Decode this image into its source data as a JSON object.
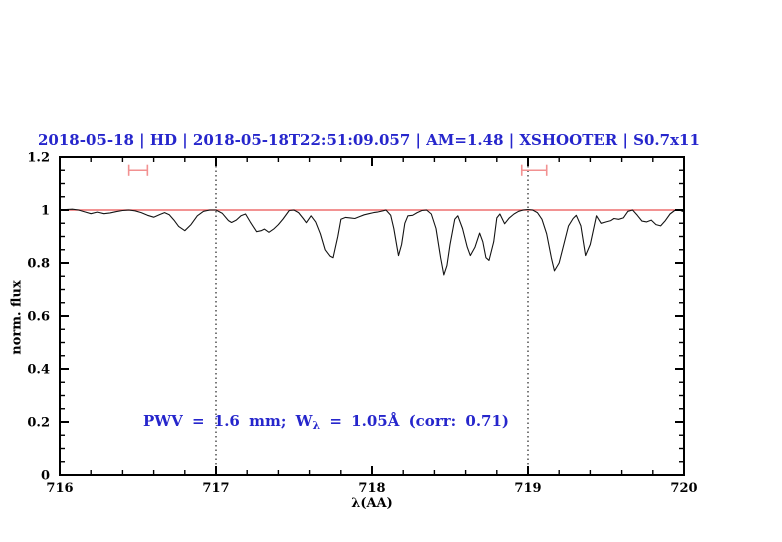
{
  "figure": {
    "title_color": "#2626cc",
    "annotation": {
      "prefix": "PWV = 1.6 mm; W",
      "sub": "λ",
      "suffix": " = 1.05Å (corr: 0.71)",
      "color": "#2626cc"
    }
  },
  "chart_data": {
    "type": "line",
    "title": "2018-05-18 | HD | 2018-05-18T22:51:09.057 | AM=1.48 | XSHOOTER | S0.7x11",
    "xlabel": "λ(AA)",
    "ylabel": "norm. flux",
    "xlim": [
      716,
      720
    ],
    "ylim": [
      0,
      1.2
    ],
    "grid": "off",
    "legend": "none",
    "xticks": {
      "values": [
        716,
        717,
        718,
        719,
        720
      ],
      "labels": [
        "716",
        "717",
        "718",
        "719",
        "720"
      ],
      "minor_step": 0.2
    },
    "yticks": {
      "values": [
        0,
        0.2,
        0.4,
        0.6,
        0.8,
        1,
        1.2
      ],
      "labels": [
        "0",
        "0.2",
        "0.4",
        "0.6",
        "0.8",
        "1",
        "1.2"
      ],
      "minor_step": 0.05
    },
    "annotation_text": "PWV = 1.6 mm; W_λ = 1.05Å (corr: 0.71)",
    "reference_line": {
      "y": 1.0,
      "color": "#ee6e6e"
    },
    "dotted_vlines": [
      717.0,
      719.0
    ],
    "marker_color": "#f29191",
    "interval_markers": [
      {
        "x1": 716.44,
        "x2": 716.56,
        "y": 1.15,
        "cap_halfheight": 0.021
      },
      {
        "x1": 718.96,
        "x2": 719.12,
        "y": 1.15,
        "cap_halfheight": 0.021
      }
    ],
    "series": [
      {
        "name": "normalized telluric spectrum",
        "color": "#141414",
        "x": [
          716.0,
          716.04,
          716.08,
          716.12,
          716.16,
          716.2,
          716.24,
          716.28,
          716.32,
          716.36,
          716.4,
          716.44,
          716.48,
          716.52,
          716.56,
          716.6,
          716.64,
          716.67,
          716.7,
          716.73,
          716.76,
          716.8,
          716.84,
          716.88,
          716.92,
          716.96,
          717.0,
          717.04,
          717.08,
          717.1,
          717.13,
          717.16,
          717.19,
          717.22,
          717.26,
          717.29,
          717.31,
          717.34,
          717.37,
          717.4,
          717.43,
          717.47,
          717.5,
          717.53,
          717.56,
          717.58,
          717.61,
          717.64,
          717.67,
          717.7,
          717.73,
          717.75,
          717.78,
          717.8,
          717.83,
          717.86,
          717.89,
          717.92,
          717.95,
          717.98,
          718.01,
          718.04,
          718.07,
          718.09,
          718.12,
          718.14,
          718.16,
          718.17,
          718.19,
          718.21,
          718.23,
          718.26,
          718.29,
          718.32,
          718.35,
          718.38,
          718.41,
          718.44,
          718.46,
          718.48,
          718.5,
          718.53,
          718.55,
          718.58,
          718.61,
          718.63,
          718.66,
          718.69,
          718.71,
          718.73,
          718.75,
          718.78,
          718.8,
          718.82,
          718.85,
          718.88,
          718.91,
          718.94,
          718.97,
          719.0,
          719.03,
          719.06,
          719.09,
          719.12,
          719.15,
          719.17,
          719.2,
          719.23,
          719.26,
          719.29,
          719.31,
          719.34,
          719.37,
          719.4,
          719.44,
          719.47,
          719.5,
          719.53,
          719.55,
          719.58,
          719.61,
          719.64,
          719.67,
          719.7,
          719.73,
          719.76,
          719.79,
          719.82,
          719.85,
          719.88,
          719.91,
          719.94,
          719.97,
          720.0
        ],
        "y": [
          1.0,
          1.002,
          1.003,
          1.0,
          0.993,
          0.986,
          0.992,
          0.986,
          0.989,
          0.994,
          0.998,
          1.0,
          0.997,
          0.99,
          0.98,
          0.973,
          0.983,
          0.99,
          0.982,
          0.962,
          0.938,
          0.922,
          0.945,
          0.978,
          0.995,
          1.0,
          1.0,
          0.988,
          0.96,
          0.953,
          0.962,
          0.978,
          0.985,
          0.955,
          0.918,
          0.922,
          0.928,
          0.916,
          0.928,
          0.945,
          0.966,
          0.998,
          1.0,
          0.99,
          0.968,
          0.952,
          0.978,
          0.955,
          0.91,
          0.85,
          0.826,
          0.82,
          0.9,
          0.965,
          0.972,
          0.97,
          0.968,
          0.975,
          0.982,
          0.986,
          0.99,
          0.993,
          0.997,
          1.0,
          0.98,
          0.93,
          0.86,
          0.828,
          0.87,
          0.95,
          0.978,
          0.98,
          0.99,
          0.998,
          1.0,
          0.985,
          0.93,
          0.82,
          0.755,
          0.79,
          0.87,
          0.965,
          0.978,
          0.93,
          0.86,
          0.828,
          0.86,
          0.913,
          0.88,
          0.82,
          0.81,
          0.88,
          0.97,
          0.985,
          0.948,
          0.97,
          0.985,
          0.995,
          1.0,
          1.002,
          1.0,
          0.99,
          0.965,
          0.91,
          0.82,
          0.77,
          0.8,
          0.87,
          0.94,
          0.968,
          0.98,
          0.94,
          0.828,
          0.87,
          0.978,
          0.95,
          0.955,
          0.96,
          0.968,
          0.965,
          0.97,
          0.995,
          1.0,
          0.98,
          0.958,
          0.955,
          0.962,
          0.945,
          0.94,
          0.96,
          0.985,
          0.998,
          1.0,
          0.993
        ]
      }
    ]
  }
}
